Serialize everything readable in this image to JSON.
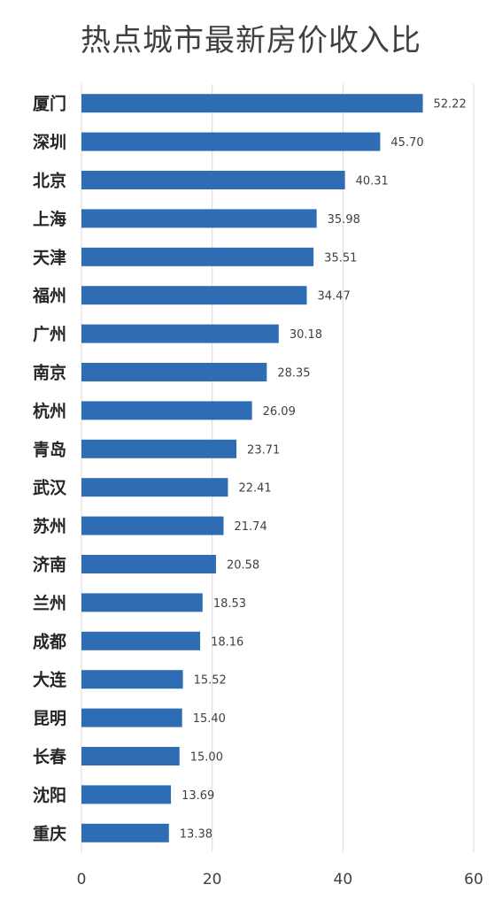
{
  "chart_data": {
    "type": "bar",
    "orientation": "horizontal",
    "title": "热点城市最新房价收入比",
    "categories": [
      "厦门",
      "深圳",
      "北京",
      "上海",
      "天津",
      "福州",
      "广州",
      "南京",
      "杭州",
      "青岛",
      "武汉",
      "苏州",
      "济南",
      "兰州",
      "成都",
      "大连",
      "昆明",
      "长春",
      "沈阳",
      "重庆"
    ],
    "values": [
      52.22,
      45.7,
      40.31,
      35.98,
      35.51,
      34.47,
      30.18,
      28.35,
      26.09,
      23.71,
      22.41,
      21.74,
      20.58,
      18.53,
      18.16,
      15.52,
      15.4,
      15.0,
      13.69,
      13.38
    ],
    "value_labels": [
      "52.22",
      "45.70",
      "40.31",
      "35.98",
      "35.51",
      "34.47",
      "30.18",
      "28.35",
      "26.09",
      "23.71",
      "22.41",
      "21.74",
      "20.58",
      "18.53",
      "18.16",
      "15.52",
      "15.40",
      "15.00",
      "13.69",
      "13.38"
    ],
    "xlim": [
      0,
      60
    ],
    "xticks": [
      "0",
      "20",
      "40",
      "60"
    ],
    "grid": "vertical",
    "legend": "none",
    "bar_color": "#2E6DB4"
  }
}
